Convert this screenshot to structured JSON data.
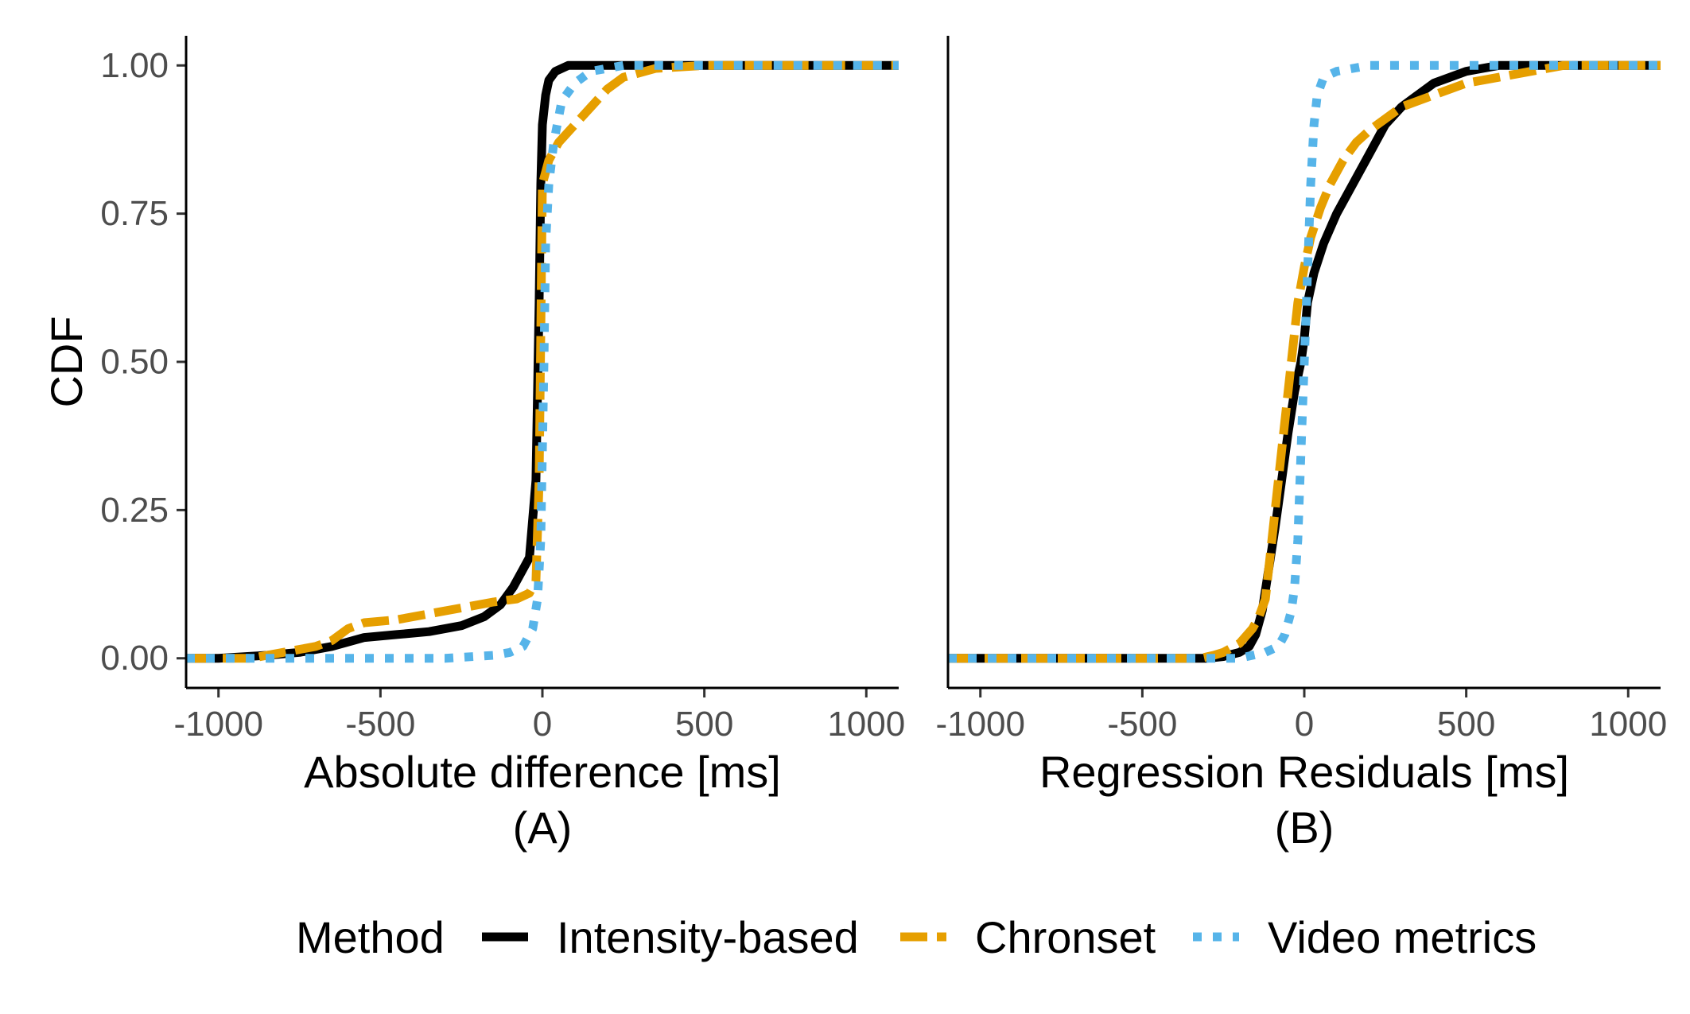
{
  "chart_data": [
    {
      "type": "line",
      "panel": "(A)",
      "xlabel": "Absolute difference [ms]",
      "subtitle": "(A)",
      "ylabel": "CDF",
      "xlim": [
        -1100,
        1100
      ],
      "ylim": [
        -0.05,
        1.05
      ],
      "x_ticks": [
        -1000,
        -500,
        0,
        500,
        1000
      ],
      "x_tick_labels": [
        "-1000",
        "-500",
        "0",
        "500",
        "1000"
      ],
      "y_ticks": [
        0.0,
        0.25,
        0.5,
        0.75,
        1.0
      ],
      "y_tick_labels": [
        "0.00",
        "0.25",
        "0.50",
        "0.75",
        "1.00"
      ],
      "grid": false,
      "series": [
        {
          "name": "Intensity-based",
          "color": "#000000",
          "dash": "solid",
          "points": [
            [
              -1100,
              0
            ],
            [
              -1000,
              0
            ],
            [
              -850,
              0.005
            ],
            [
              -750,
              0.01
            ],
            [
              -650,
              0.02
            ],
            [
              -550,
              0.035
            ],
            [
              -450,
              0.04
            ],
            [
              -350,
              0.045
            ],
            [
              -250,
              0.055
            ],
            [
              -180,
              0.07
            ],
            [
              -130,
              0.09
            ],
            [
              -90,
              0.12
            ],
            [
              -60,
              0.15
            ],
            [
              -40,
              0.17
            ],
            [
              -20,
              0.3
            ],
            [
              -10,
              0.6
            ],
            [
              -5,
              0.8
            ],
            [
              0,
              0.9
            ],
            [
              10,
              0.95
            ],
            [
              20,
              0.975
            ],
            [
              40,
              0.99
            ],
            [
              80,
              1.0
            ],
            [
              150,
              1.0
            ],
            [
              1100,
              1.0
            ]
          ]
        },
        {
          "name": "Chronset",
          "color": "#E69F00",
          "dash": "dashed",
          "points": [
            [
              -1100,
              0
            ],
            [
              -900,
              0
            ],
            [
              -800,
              0.01
            ],
            [
              -700,
              0.02
            ],
            [
              -650,
              0.03
            ],
            [
              -600,
              0.05
            ],
            [
              -550,
              0.06
            ],
            [
              -450,
              0.065
            ],
            [
              -350,
              0.075
            ],
            [
              -250,
              0.085
            ],
            [
              -150,
              0.095
            ],
            [
              -80,
              0.1
            ],
            [
              -40,
              0.11
            ],
            [
              -20,
              0.13
            ],
            [
              -10,
              0.3
            ],
            [
              -5,
              0.55
            ],
            [
              0,
              0.8
            ],
            [
              20,
              0.84
            ],
            [
              50,
              0.87
            ],
            [
              100,
              0.9
            ],
            [
              150,
              0.93
            ],
            [
              200,
              0.96
            ],
            [
              250,
              0.98
            ],
            [
              350,
              0.995
            ],
            [
              500,
              1.0
            ],
            [
              1100,
              1.0
            ]
          ]
        },
        {
          "name": "Video metrics",
          "color": "#56B4E9",
          "dash": "dotted",
          "points": [
            [
              -1100,
              0
            ],
            [
              -300,
              0
            ],
            [
              -150,
              0.005
            ],
            [
              -100,
              0.01
            ],
            [
              -60,
              0.02
            ],
            [
              -30,
              0.05
            ],
            [
              -15,
              0.1
            ],
            [
              -5,
              0.2
            ],
            [
              0,
              0.35
            ],
            [
              5,
              0.5
            ],
            [
              10,
              0.7
            ],
            [
              20,
              0.8
            ],
            [
              35,
              0.87
            ],
            [
              60,
              0.94
            ],
            [
              100,
              0.97
            ],
            [
              150,
              0.99
            ],
            [
              250,
              1.0
            ],
            [
              1100,
              1.0
            ]
          ]
        }
      ]
    },
    {
      "type": "line",
      "panel": "(B)",
      "xlabel": "Regression Residuals [ms]",
      "subtitle": "(B)",
      "xlim": [
        -1100,
        1100
      ],
      "ylim": [
        -0.05,
        1.05
      ],
      "x_ticks": [
        -1000,
        -500,
        0,
        500,
        1000
      ],
      "x_tick_labels": [
        "-1000",
        "-500",
        "0",
        "500",
        "1000"
      ],
      "grid": false,
      "series": [
        {
          "name": "Intensity-based",
          "color": "#000000",
          "dash": "solid",
          "points": [
            [
              -1100,
              0
            ],
            [
              -300,
              0
            ],
            [
              -250,
              0.003
            ],
            [
              -200,
              0.01
            ],
            [
              -170,
              0.02
            ],
            [
              -150,
              0.04
            ],
            [
              -130,
              0.08
            ],
            [
              -110,
              0.15
            ],
            [
              -90,
              0.22
            ],
            [
              -70,
              0.3
            ],
            [
              -50,
              0.38
            ],
            [
              -30,
              0.45
            ],
            [
              -10,
              0.5
            ],
            [
              0,
              0.54
            ],
            [
              10,
              0.6
            ],
            [
              30,
              0.65
            ],
            [
              60,
              0.7
            ],
            [
              100,
              0.75
            ],
            [
              150,
              0.8
            ],
            [
              200,
              0.85
            ],
            [
              250,
              0.9
            ],
            [
              300,
              0.93
            ],
            [
              350,
              0.95
            ],
            [
              400,
              0.97
            ],
            [
              500,
              0.99
            ],
            [
              600,
              1.0
            ],
            [
              1100,
              1.0
            ]
          ]
        },
        {
          "name": "Chronset",
          "color": "#E69F00",
          "dash": "dashed",
          "points": [
            [
              -1100,
              0
            ],
            [
              -320,
              0
            ],
            [
              -280,
              0.005
            ],
            [
              -250,
              0.01
            ],
            [
              -200,
              0.025
            ],
            [
              -160,
              0.05
            ],
            [
              -140,
              0.07
            ],
            [
              -120,
              0.1
            ],
            [
              -100,
              0.2
            ],
            [
              -80,
              0.3
            ],
            [
              -60,
              0.4
            ],
            [
              -40,
              0.5
            ],
            [
              -20,
              0.6
            ],
            [
              0,
              0.66
            ],
            [
              20,
              0.71
            ],
            [
              50,
              0.76
            ],
            [
              80,
              0.8
            ],
            [
              120,
              0.84
            ],
            [
              160,
              0.87
            ],
            [
              200,
              0.89
            ],
            [
              250,
              0.91
            ],
            [
              300,
              0.93
            ],
            [
              400,
              0.95
            ],
            [
              500,
              0.97
            ],
            [
              600,
              0.98
            ],
            [
              700,
              0.99
            ],
            [
              800,
              1.0
            ],
            [
              1100,
              1.0
            ]
          ]
        },
        {
          "name": "Video metrics",
          "color": "#56B4E9",
          "dash": "dotted",
          "points": [
            [
              -1100,
              0
            ],
            [
              -200,
              0
            ],
            [
              -120,
              0.01
            ],
            [
              -80,
              0.02
            ],
            [
              -60,
              0.04
            ],
            [
              -40,
              0.08
            ],
            [
              -30,
              0.12
            ],
            [
              -20,
              0.2
            ],
            [
              -10,
              0.35
            ],
            [
              0,
              0.5
            ],
            [
              10,
              0.65
            ],
            [
              20,
              0.8
            ],
            [
              30,
              0.9
            ],
            [
              40,
              0.95
            ],
            [
              60,
              0.98
            ],
            [
              100,
              0.99
            ],
            [
              200,
              1.0
            ],
            [
              1100,
              1.0
            ]
          ]
        }
      ]
    }
  ],
  "legend": {
    "title": "Method",
    "placement": "bottom",
    "entries": [
      {
        "name": "Intensity-based",
        "color": "#000000",
        "dash": "solid"
      },
      {
        "name": "Chronset",
        "color": "#E69F00",
        "dash": "dashed"
      },
      {
        "name": "Video metrics",
        "color": "#56B4E9",
        "dash": "dotted"
      }
    ]
  }
}
